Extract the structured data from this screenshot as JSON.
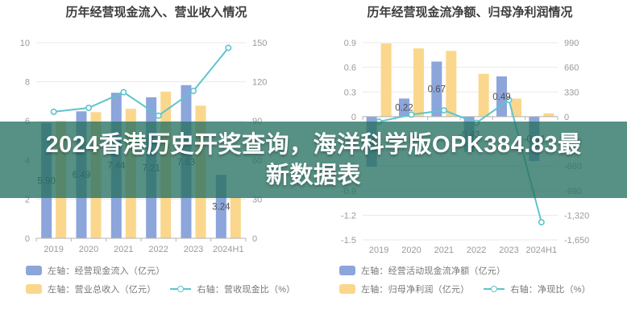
{
  "headline": {
    "line1": "2024香港历史开奖查询，海洋科学版OPK384.83最",
    "line2": "新数据表"
  },
  "colors": {
    "bar_blue": "#8CA5DB",
    "bar_yellow": "#FAD78C",
    "line_teal": "#5FC4CD",
    "banner_bg": "rgba(40,113,98,0.78)",
    "grid": "#EAEAEA",
    "axis": "#B3B3B3",
    "tick_text": "#9A9A9A",
    "title_text": "#3D3D3D",
    "bar_label_text": "#4F4F4F"
  },
  "chart_data": [
    {
      "type": "bar+line",
      "title": "历年经营现金流入、营业收入情况",
      "categories": [
        "2019",
        "2020",
        "2021",
        "2022",
        "2023",
        "2024H1"
      ],
      "left_axis": {
        "min": 0,
        "max": 10,
        "step": 2
      },
      "right_axis": {
        "min": 0,
        "max": 150,
        "step": 30
      },
      "left_ticks": [
        "10",
        "8",
        "6",
        "4",
        "2",
        "0"
      ],
      "right_ticks": [
        "150",
        "120",
        "90",
        "60",
        "30",
        "0"
      ],
      "series": [
        {
          "name": "左轴：经营现金流入（亿元）",
          "type": "bar",
          "axis": "left",
          "color": "#8CA5DB",
          "values": [
            5.9,
            6.49,
            7.44,
            7.21,
            7.83,
            3.24
          ],
          "labels": [
            "5.90",
            "6.49",
            "7.44",
            "7.21",
            "7.83",
            "3.24"
          ]
        },
        {
          "name": "左轴：营业总收入（亿元）",
          "type": "bar",
          "axis": "left",
          "color": "#FAD78C",
          "values": [
            6.0,
            6.45,
            6.62,
            7.5,
            6.78,
            2.1
          ]
        },
        {
          "name": "右轴：营收现金比（%）",
          "type": "line",
          "axis": "right",
          "color": "#5FC4CD",
          "values": [
            97,
            100,
            112,
            94,
            113,
            146
          ]
        }
      ]
    },
    {
      "type": "bar+line",
      "title": "历年经营现金流净额、归母净利润情况",
      "categories": [
        "2019",
        "2020",
        "2021",
        "2022",
        "2023",
        "2024H1"
      ],
      "left_axis": {
        "min": -1.5,
        "max": 0.9,
        "step": 0.3
      },
      "right_axis": {
        "min": -1650,
        "max": 990,
        "step": 330
      },
      "left_ticks": [
        "0.9",
        "0.6",
        "0.3",
        "0",
        "-0.3",
        "-0.6",
        "-0.9",
        "-1.2",
        "-1.5"
      ],
      "right_ticks": [
        "990",
        "660",
        "330",
        "0",
        "-330",
        "-660",
        "-990",
        "-1,320",
        "-1,650"
      ],
      "series": [
        {
          "name": "左轴：经营活动现金流净额（亿元）",
          "type": "bar",
          "axis": "left",
          "color": "#8CA5DB",
          "values": [
            -0.61,
            0.22,
            0.67,
            -0.43,
            0.49,
            -0.54
          ],
          "labels": [
            "-0.61",
            "0.22",
            "0.67",
            "-0.43",
            "0.49",
            "-0.54"
          ]
        },
        {
          "name": "左轴：归母净利润（亿元）",
          "type": "bar",
          "axis": "left",
          "color": "#FAD78C",
          "values": [
            0.89,
            0.83,
            0.8,
            0.52,
            0.22,
            0.04
          ]
        },
        {
          "name": "右轴：净现比（%）",
          "type": "line",
          "axis": "right",
          "color": "#5FC4CD",
          "values": [
            -68,
            27,
            84,
            -83,
            223,
            -1414
          ]
        }
      ]
    }
  ]
}
